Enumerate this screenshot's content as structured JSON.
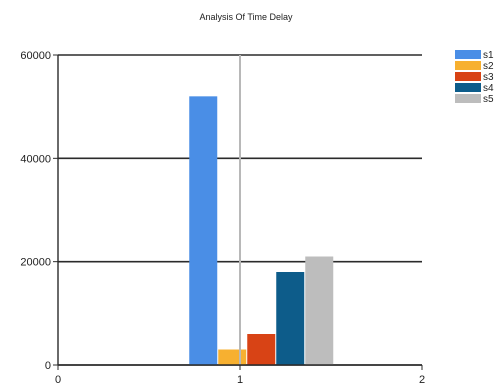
{
  "chart_data": {
    "type": "bar",
    "title": "Analysis Of Time Delay",
    "xlabel": "",
    "ylabel": "",
    "x_ticks": [
      "0",
      "1",
      "2"
    ],
    "xlim": [
      0,
      2
    ],
    "y_ticks": [
      "0",
      "20000",
      "40000",
      "60000"
    ],
    "ylim": [
      0,
      60000
    ],
    "grid": "horizontal",
    "legend_position": "right",
    "group_center": 1,
    "series": [
      {
        "name": "s1",
        "value": 52000,
        "color": "#4a8ee6"
      },
      {
        "name": "s2",
        "value": 3000,
        "color": "#f7b030"
      },
      {
        "name": "s3",
        "value": 6000,
        "color": "#d84315"
      },
      {
        "name": "s4",
        "value": 18000,
        "color": "#0d5c8a"
      },
      {
        "name": "s5",
        "value": 21000,
        "color": "#bdbdbd"
      }
    ]
  }
}
